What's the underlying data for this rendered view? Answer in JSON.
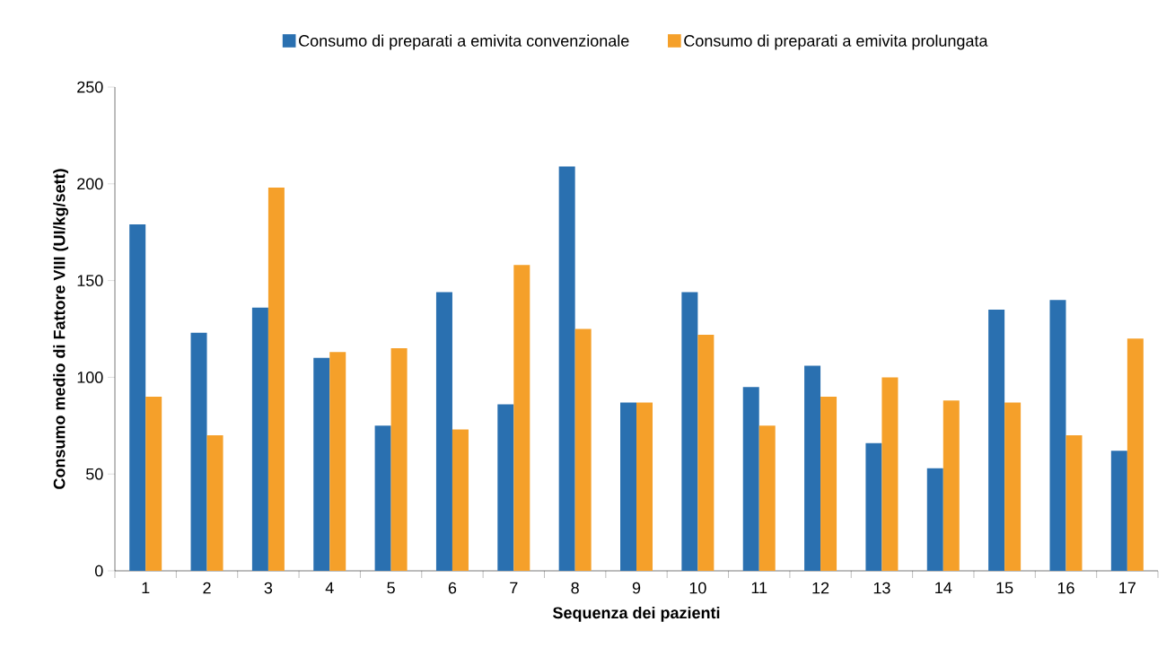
{
  "chart_data": {
    "type": "bar",
    "xlabel": "Sequenza dei pazienti",
    "ylabel": "Consumo medio di Fattore VIII (UI/kg/sett)",
    "categories": [
      "1",
      "2",
      "3",
      "4",
      "5",
      "6",
      "7",
      "8",
      "9",
      "10",
      "11",
      "12",
      "13",
      "14",
      "15",
      "16",
      "17"
    ],
    "series": [
      {
        "name": "Consumo di preparati a emivita convenzionale",
        "color": "#2a70b0",
        "values": [
          179,
          123,
          136,
          110,
          75,
          144,
          86,
          209,
          87,
          144,
          95,
          106,
          66,
          53,
          135,
          140,
          62
        ]
      },
      {
        "name": "Consumo di preparati a emivita prolungata",
        "color": "#f5a02a",
        "values": [
          90,
          70,
          198,
          113,
          115,
          73,
          158,
          125,
          87,
          122,
          75,
          90,
          100,
          88,
          87,
          70,
          120
        ]
      }
    ],
    "ylim": [
      0,
      250
    ],
    "yticks": [
      0,
      50,
      100,
      150,
      200,
      250
    ],
    "grid": false,
    "legend": "top"
  }
}
